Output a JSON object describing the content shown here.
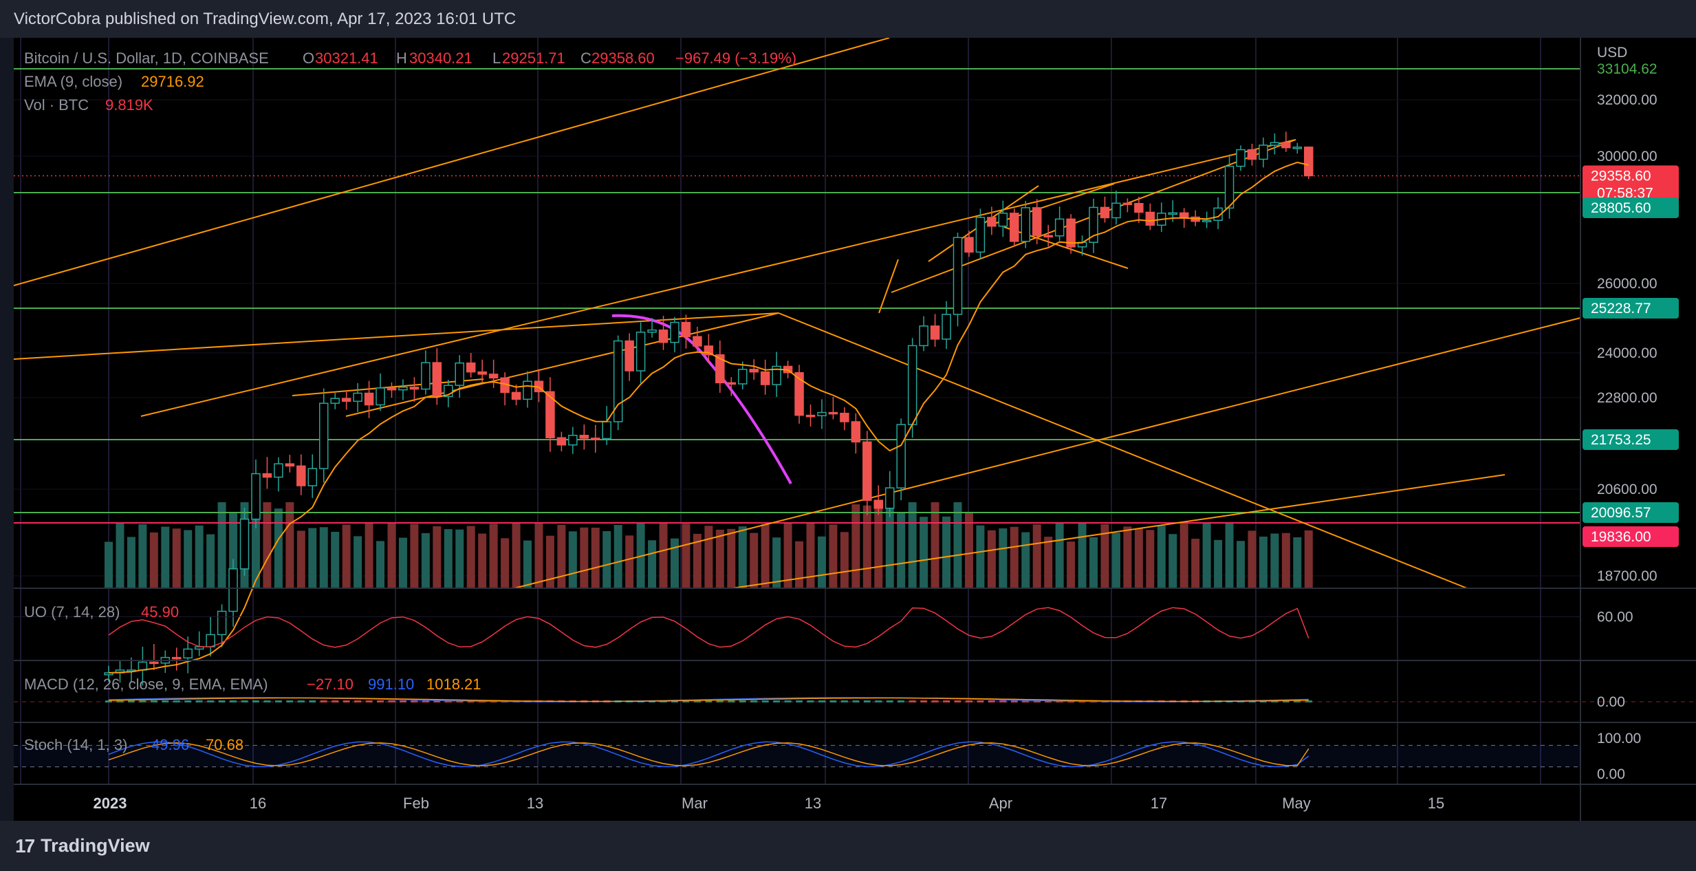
{
  "header": {
    "publisher": "VictorCobra published on TradingView.com, Apr 17, 2023 16:01 UTC"
  },
  "footer": {
    "logo_mark": "17",
    "brand": "TradingView"
  },
  "legend": {
    "symbol": "Bitcoin / U.S. Dollar, 1D, COINBASE",
    "o_label": "O",
    "o_value": "30321.41",
    "h_label": "H",
    "h_value": "30340.21",
    "l_label": "L",
    "l_value": "29251.71",
    "c_label": "C",
    "c_value": "29358.60",
    "change": "−967.49 (−3.19%)",
    "ema_label": "EMA (9, close)",
    "ema_value": "29716.92",
    "vol_label": "Vol · BTC",
    "vol_value": "9.819K"
  },
  "currency": "USD",
  "price_axis": {
    "ticks": [
      "32000.00",
      "30000.00",
      "26000.00",
      "24000.00",
      "22800.00",
      "20600.00",
      "18700.00"
    ],
    "partial_top": "33104.62",
    "badges": [
      {
        "label": "29358.60",
        "sub": "07:58:37",
        "color": "#f23645"
      },
      {
        "label": "28805.60",
        "color": "#089981"
      },
      {
        "label": "25228.77",
        "color": "#089981"
      },
      {
        "label": "21753.25",
        "color": "#089981"
      },
      {
        "label": "20096.57",
        "color": "#089981"
      },
      {
        "label": "19836.00",
        "color": "#f7275e"
      }
    ]
  },
  "time_axis": {
    "ticks": [
      "2023",
      "16",
      "Feb",
      "13",
      "Mar",
      "13",
      "Apr",
      "17",
      "May",
      "15"
    ]
  },
  "indicators": {
    "uo": {
      "label": "UO (7, 14, 28)",
      "value": "45.90",
      "tick": "60.00"
    },
    "macd": {
      "label": "MACD (12, 26, close, 9, EMA, EMA)",
      "v1": "−27.10",
      "v2": "991.10",
      "v3": "1018.21",
      "tick": "0.00"
    },
    "stoch": {
      "label": "Stoch (14, 1, 3)",
      "k": "49.96",
      "d": "70.68",
      "ticks": [
        "100.00",
        "0.00"
      ]
    }
  },
  "colors": {
    "up": "#26a69a",
    "down": "#ef5350",
    "vol_up": "#1f5f58",
    "vol_down": "#7a2e2e",
    "ema": "#ff9800",
    "trend": "#ff9800",
    "hline": "#4caf50",
    "magenta": "#e040fb",
    "uo": "#f23645",
    "stoch_k": "#2962ff",
    "stoch_d": "#ff9800"
  },
  "chart_data": {
    "type": "candlestick",
    "title": "Bitcoin / U.S. Dollar, 1D, COINBASE",
    "x": [
      "2023-01-01",
      "2023-01-02",
      "2023-01-03",
      "2023-01-04",
      "2023-01-05",
      "2023-01-06",
      "2023-01-07",
      "2023-01-08",
      "2023-01-09",
      "2023-01-10",
      "2023-01-11",
      "2023-01-12",
      "2023-01-13",
      "2023-01-14",
      "2023-01-15",
      "2023-01-16",
      "2023-01-17",
      "2023-01-18",
      "2023-01-19",
      "2023-01-20",
      "2023-01-21",
      "2023-01-22",
      "2023-01-23",
      "2023-01-24",
      "2023-01-25",
      "2023-01-26",
      "2023-01-27",
      "2023-01-28",
      "2023-01-29",
      "2023-01-30",
      "2023-01-31",
      "2023-02-01",
      "2023-02-02",
      "2023-02-03",
      "2023-02-04",
      "2023-02-05",
      "2023-02-06",
      "2023-02-07",
      "2023-02-08",
      "2023-02-09",
      "2023-02-10",
      "2023-02-11",
      "2023-02-12",
      "2023-02-13",
      "2023-02-14",
      "2023-02-15",
      "2023-02-16",
      "2023-02-17",
      "2023-02-18",
      "2023-02-19",
      "2023-02-20",
      "2023-02-21",
      "2023-02-22",
      "2023-02-23",
      "2023-02-24",
      "2023-02-25",
      "2023-02-26",
      "2023-02-27",
      "2023-02-28",
      "2023-03-01",
      "2023-03-02",
      "2023-03-03",
      "2023-03-04",
      "2023-03-05",
      "2023-03-06",
      "2023-03-07",
      "2023-03-08",
      "2023-03-09",
      "2023-03-10",
      "2023-03-11",
      "2023-03-12",
      "2023-03-13",
      "2023-03-14",
      "2023-03-15",
      "2023-03-16",
      "2023-03-17",
      "2023-03-18",
      "2023-03-19",
      "2023-03-20",
      "2023-03-21",
      "2023-03-22",
      "2023-03-23",
      "2023-03-24",
      "2023-03-25",
      "2023-03-26",
      "2023-03-27",
      "2023-03-28",
      "2023-03-29",
      "2023-03-30",
      "2023-03-31",
      "2023-04-01",
      "2023-04-02",
      "2023-04-03",
      "2023-04-04",
      "2023-04-05",
      "2023-04-06",
      "2023-04-07",
      "2023-04-08",
      "2023-04-09",
      "2023-04-10",
      "2023-04-11",
      "2023-04-12",
      "2023-04-13",
      "2023-04-14",
      "2023-04-15",
      "2023-04-16",
      "2023-04-17"
    ],
    "close": [
      16620,
      16680,
      16680,
      16850,
      16830,
      16950,
      16940,
      17130,
      17180,
      17440,
      17940,
      18850,
      19930,
      20960,
      20880,
      21190,
      21140,
      20680,
      21080,
      22660,
      22780,
      22710,
      22920,
      22620,
      23060,
      23010,
      23080,
      23030,
      23740,
      22830,
      23130,
      23730,
      23490,
      23430,
      23330,
      22940,
      22760,
      23240,
      22960,
      21800,
      21630,
      21860,
      21790,
      21780,
      22200,
      24330,
      23520,
      24570,
      24630,
      24290,
      24840,
      24450,
      24190,
      23950,
      23200,
      23170,
      23560,
      23490,
      23150,
      23640,
      23470,
      22360,
      22350,
      22430,
      22410,
      22200,
      21700,
      20360,
      20190,
      20630,
      22130,
      24200,
      24740,
      24380,
      25060,
      27420,
      26970,
      28040,
      27770,
      28170,
      27300,
      28340,
      27480,
      27470,
      27990,
      27130,
      27270,
      28350,
      28030,
      28480,
      28470,
      28200,
      27800,
      28170,
      28180,
      28050,
      27920,
      27950,
      28330,
      29670,
      30230,
      29900,
      30390,
      30480,
      30300,
      30320,
      29359
    ],
    "ema9_last": 29716.92,
    "volume_last_btc": "9.819K",
    "horizontal_levels": [
      33104.62,
      28805.6,
      25228.77,
      21753.25,
      20096.57,
      19836.0
    ],
    "last_price": 29358.6,
    "ohlc_last": {
      "open": 30321.41,
      "high": 30340.21,
      "low": 29251.71,
      "close": 29358.6,
      "change": -967.49,
      "change_pct": -3.19
    }
  }
}
